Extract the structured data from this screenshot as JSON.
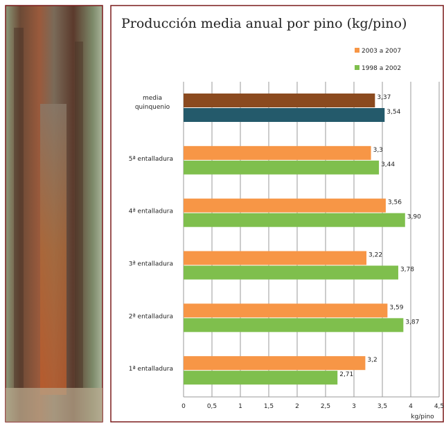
{
  "chart_data": {
    "type": "bar",
    "orientation": "horizontal",
    "title": "Producción media anual por pino (kg/pino)",
    "categories": [
      "media\nquinquenio",
      "5ª entalladura",
      "4ª entalladura",
      "3ª entalladura",
      "2ª entalladura",
      "1ª entalladura"
    ],
    "series": [
      {
        "name": "2003 a 2007",
        "color": "#f79646",
        "point_colors": [
          "#8b4a1f",
          "#f79646",
          "#f79646",
          "#f79646",
          "#f79646",
          "#f79646"
        ],
        "values": [
          3.37,
          3.3,
          3.56,
          3.22,
          3.59,
          3.2
        ],
        "value_labels": [
          "3,37",
          "3,3",
          "3,56",
          "3,22",
          "3,59",
          "3,2"
        ]
      },
      {
        "name": "1998 a 2002",
        "color": "#7fbf4d",
        "point_colors": [
          "#245a6b",
          "#7fbf4d",
          "#7fbf4d",
          "#7fbf4d",
          "#7fbf4d",
          "#7fbf4d"
        ],
        "values": [
          3.54,
          3.44,
          3.9,
          3.78,
          3.87,
          2.71
        ],
        "value_labels": [
          "3,54",
          "3,44",
          "3,90",
          "3,78",
          "3,87",
          "2,71"
        ]
      }
    ],
    "xlim": [
      0,
      4.5
    ],
    "xticks": [
      0,
      {
        "value": 0.5,
        "label": "0,5"
      },
      1,
      {
        "value": 1.5,
        "label": "1,5"
      },
      2,
      {
        "value": 2.5,
        "label": "2,5"
      },
      3,
      {
        "value": 3.5,
        "label": "3,5"
      },
      4,
      {
        "value": 4.5,
        "label": "4,5"
      }
    ],
    "x_label": "kg/pino",
    "grid": true
  }
}
